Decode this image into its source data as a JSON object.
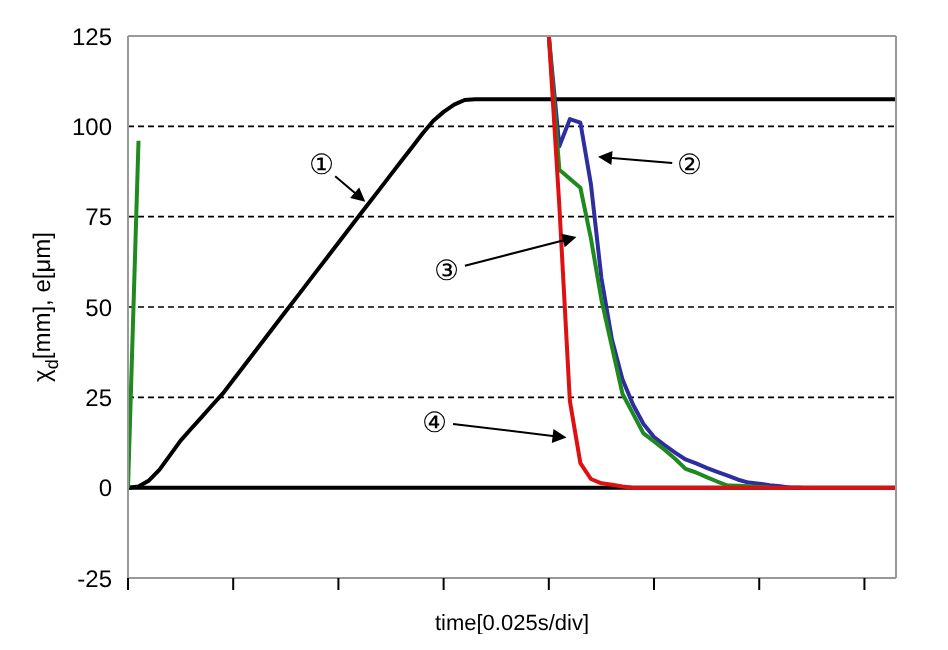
{
  "chart_data": {
    "type": "line",
    "xlabel": "time[0.025s/div]",
    "ylabel": "χ$_{d}$[mm], e[μm]",
    "categories": [
      null,
      null,
      null,
      null,
      null,
      null,
      null,
      null,
      null,
      null,
      null,
      null,
      null,
      null,
      null,
      null,
      null,
      null,
      null,
      null,
      null,
      null,
      null,
      null,
      null,
      null,
      null,
      null,
      null,
      null,
      null,
      null,
      null,
      null,
      null,
      null,
      null,
      null,
      null,
      null,
      null,
      null,
      null,
      null,
      null,
      null,
      null,
      null,
      null,
      null,
      null,
      null,
      null,
      null,
      null,
      null,
      null,
      null,
      null,
      null,
      null,
      null,
      null,
      null,
      null,
      null,
      null,
      null,
      null,
      null,
      null,
      null,
      null,
      null
    ],
    "ylim": [
      -25,
      125
    ],
    "yticks": [
      -25,
      0,
      25,
      50,
      75,
      100,
      125
    ],
    "grid": "y",
    "tick_labels": "y",
    "marker": "none",
    "line_style": "solid",
    "ref_lines": [
      {
        "axis": "y",
        "value": 0,
        "color": "#000000"
      }
    ],
    "series": [
      {
        "color": "#000000",
        "values": [
          0,
          0.3,
          2,
          5,
          9,
          13,
          16.3,
          19.5,
          22.8,
          26,
          29.8,
          33.6,
          37.4,
          41.2,
          45,
          48.8,
          52.6,
          56.4,
          60.2,
          64,
          67.8,
          71.6,
          75.4,
          79.1,
          82.9,
          86.7,
          90.5,
          94.2,
          98,
          101.5,
          104,
          106,
          107.3,
          107.5,
          107.5,
          107.5,
          107.5,
          107.5,
          107.5,
          107.5,
          107.5,
          107.5,
          107.5,
          107.5,
          107.5,
          107.5,
          107.5,
          107.5,
          107.5,
          107.5,
          107.5,
          107.5,
          107.5,
          107.5,
          107.5,
          107.5,
          107.5,
          107.5,
          107.5,
          107.5,
          107.5,
          107.5,
          107.5,
          107.5,
          107.5,
          107.5,
          107.5,
          107.5,
          107.5,
          107.5,
          107.5,
          107.5,
          107.5,
          107.5
        ]
      },
      {
        "color": "#2e2e9e",
        "values": [
          null,
          null,
          null,
          null,
          null,
          null,
          null,
          null,
          null,
          null,
          null,
          null,
          null,
          null,
          null,
          null,
          null,
          null,
          null,
          null,
          null,
          null,
          null,
          null,
          null,
          null,
          null,
          null,
          null,
          null,
          null,
          null,
          null,
          null,
          null,
          null,
          null,
          null,
          null,
          null,
          125,
          94.5,
          102,
          101,
          84,
          58,
          41,
          30,
          23,
          17.6,
          14,
          11.8,
          9.7,
          7.8,
          6.7,
          5.5,
          4.4,
          3.3,
          2.2,
          1.4,
          1.1,
          0.7,
          0.4,
          0,
          0,
          null,
          null,
          null,
          null,
          null,
          null,
          null,
          null,
          null
        ]
      },
      {
        "color": "#1f8a1f",
        "values": [
          0,
          96,
          null,
          null,
          null,
          null,
          null,
          null,
          null,
          null,
          null,
          null,
          null,
          null,
          null,
          null,
          null,
          null,
          null,
          null,
          null,
          null,
          null,
          null,
          null,
          null,
          null,
          null,
          null,
          null,
          null,
          null,
          null,
          null,
          null,
          null,
          null,
          null,
          null,
          null,
          125,
          88,
          85.5,
          83,
          69,
          52,
          39,
          26,
          20.5,
          15,
          12.8,
          10.5,
          8,
          5.2,
          4.2,
          2.9,
          1.7,
          0.6,
          0.5,
          0.4,
          0.2,
          0.1,
          null,
          null,
          null,
          null,
          null,
          null,
          null,
          null,
          null,
          null,
          null,
          null
        ]
      },
      {
        "color": "#dd1111",
        "values": [
          null,
          null,
          null,
          null,
          null,
          null,
          null,
          null,
          null,
          null,
          null,
          null,
          null,
          null,
          null,
          null,
          null,
          null,
          null,
          null,
          null,
          null,
          null,
          null,
          null,
          null,
          null,
          null,
          null,
          null,
          null,
          null,
          null,
          null,
          null,
          null,
          null,
          null,
          null,
          null,
          125,
          78,
          24,
          6.8,
          2.4,
          1.2,
          0.8,
          0.3,
          0,
          0,
          0,
          0,
          0,
          0,
          0,
          0,
          0,
          0,
          0,
          0,
          0,
          0,
          0,
          0,
          0,
          0,
          0,
          0,
          0,
          0,
          0,
          0,
          0,
          0
        ]
      }
    ],
    "annotations": [
      "①",
      "②",
      "③",
      "④"
    ]
  }
}
